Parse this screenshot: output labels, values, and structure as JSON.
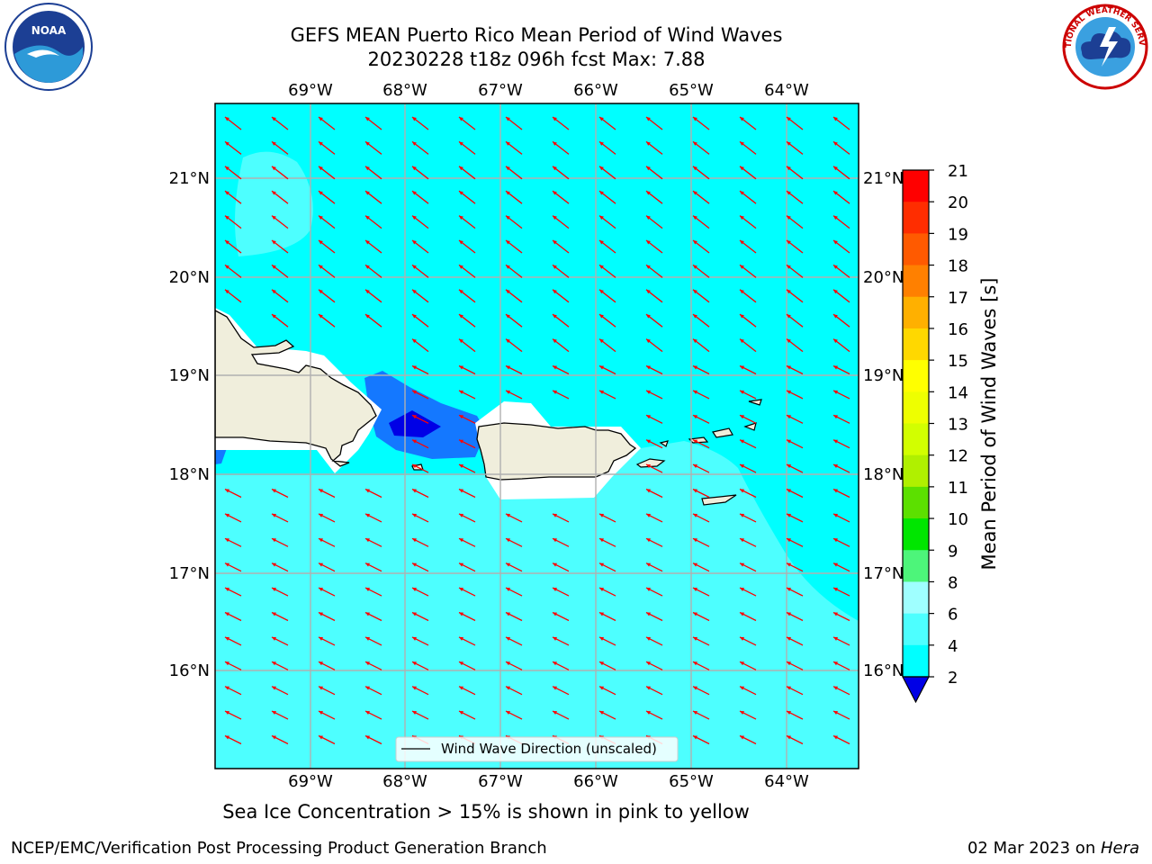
{
  "title": {
    "line1": "GEFS MEAN Puerto Rico Mean Period of Wind Waves",
    "line2": "20230228 t18z 096h fcst   Max: 7.88"
  },
  "logos": {
    "left": "NOAA",
    "right": "NATIONAL WEATHER SERVICE"
  },
  "map": {
    "top_lon_labels": [
      "69°W",
      "68°W",
      "67°W",
      "66°W",
      "65°W",
      "64°W"
    ],
    "bottom_lon_labels": [
      "69°W",
      "68°W",
      "67°W",
      "66°W",
      "65°W",
      "64°W"
    ],
    "left_lat_labels": [
      "21°N",
      "20°N",
      "19°N",
      "18°N",
      "17°N",
      "16°N"
    ],
    "right_lat_labels": [
      "21°N",
      "20°N",
      "19°N",
      "18°N",
      "17°N",
      "16°N"
    ],
    "legend_label": "Wind Wave Direction (unscaled)",
    "colors": {
      "sea_4_6": "#00ffff",
      "sea_6_8": "#4dffff",
      "sea_2_4": "#1478ff",
      "sea_lt2": "#0000e6",
      "land": "#f0eedc",
      "arrow": "#ff0000",
      "grid": "#b0b0b0"
    }
  },
  "colorbar": {
    "label": "Mean Period of Wind Waves [s]",
    "ticks": [
      "21",
      "20",
      "19",
      "18",
      "17",
      "16",
      "15",
      "14",
      "13",
      "12",
      "11",
      "10",
      "9",
      "8",
      "6",
      "4",
      "2"
    ],
    "colors_top_to_bottom": [
      "#ff0000",
      "#ff2d00",
      "#ff5a00",
      "#ff8000",
      "#ffb000",
      "#ffd800",
      "#ffff00",
      "#eeff00",
      "#d2ff00",
      "#b0f000",
      "#5ce000",
      "#00e600",
      "#4df57a",
      "#9fffff",
      "#4dffff",
      "#00ffff",
      "#1478ff"
    ],
    "under_color": "#0000e6"
  },
  "subnote": "Sea Ice Concentration > 15% is shown in pink to yellow",
  "footer": {
    "left": "NCEP/EMC/Verification Post Processing Product Generation Branch",
    "right_date": "02 Mar 2023 on ",
    "right_host": "Hera"
  }
}
